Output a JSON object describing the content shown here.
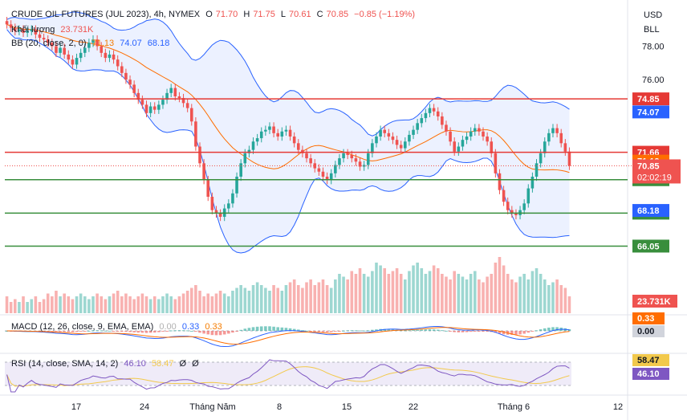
{
  "header": {
    "instrument": "CRUDE OIL FUTURES (JUL 2023), 4h, NYMEX",
    "ohlc": {
      "o_label": "O",
      "o": "71.70",
      "h_label": "H",
      "h": "71.75",
      "l_label": "L",
      "l": "70.61",
      "c_label": "C",
      "c": "70.85",
      "change": "−0.85 (−1.19%)"
    },
    "volume_label": "Khối lượng",
    "volume_value": "23.731K",
    "bb_label": "BB (20, close, 2, 0)",
    "bb_values": [
      "71.13",
      "74.07",
      "68.18"
    ]
  },
  "right_axis": {
    "currency": "USD",
    "mode": "BLL"
  },
  "macd_legend": {
    "label": "MACD (12, 26, close, 9, EMA, EMA)",
    "v1": "0.00",
    "v2": "0.33",
    "v3": "0.33"
  },
  "rsi_legend": {
    "label": "RSI (14, close, SMA, 14, 2)",
    "v1": "46.10",
    "v2": "58.47",
    "v3": "Ø",
    "v4": "Ø"
  },
  "colors": {
    "up": "#26a69a",
    "down": "#ef5350",
    "bb_band": "#2962ff",
    "bb_basis": "#ff6d00",
    "res_line": "#e53935",
    "sup_line": "#388e3c",
    "macd": "#2962ff",
    "signal": "#ff6d00",
    "rsi": "#7e57c2",
    "rsi_ma": "#f2c94c",
    "rsi_band": "rgba(126,87,194,0.12)"
  },
  "chart_data": {
    "type": "candlestick",
    "price_ticks": [
      "78.00",
      "76.00"
    ],
    "price_range": [
      64.2,
      79.8
    ],
    "x_ticks": [
      "17",
      "24",
      "Tháng Năm",
      "8",
      "15",
      "22",
      "Tháng 6",
      "12"
    ],
    "h_lines": [
      {
        "price": 74.85,
        "label": "74.85",
        "kind": "resistance"
      },
      {
        "price": 71.66,
        "label": "71.66",
        "kind": "resistance"
      },
      {
        "price": 70.02,
        "label": "70.02",
        "kind": "support"
      },
      {
        "price": 68.02,
        "label": "68.02",
        "kind": "support"
      },
      {
        "price": 66.05,
        "label": "66.05",
        "kind": "support"
      }
    ],
    "price_badges": [
      {
        "price": 74.07,
        "label": "74.07",
        "color": "#2962ff"
      },
      {
        "price": 71.13,
        "label": "71.13",
        "color": "#ff6d00"
      },
      {
        "price": 68.18,
        "label": "68.18",
        "color": "#2962ff"
      }
    ],
    "last_price": {
      "price": 70.85,
      "label": "70.85",
      "countdown": "02:02:19"
    },
    "volume_badge": "23.731K",
    "macd_badges": [
      "0.33",
      "0.00"
    ],
    "rsi_badges": [
      "58.47",
      "46.10"
    ],
    "close_series": [
      79.3,
      79.1,
      78.9,
      79.0,
      78.8,
      78.9,
      79.0,
      78.7,
      78.5,
      78.4,
      78.2,
      78.0,
      77.6,
      77.9,
      77.5,
      77.2,
      76.9,
      77.3,
      77.6,
      77.9,
      78.2,
      78.4,
      78.0,
      77.6,
      77.3,
      77.5,
      77.2,
      76.8,
      76.4,
      76.0,
      75.7,
      75.2,
      74.8,
      74.5,
      74.0,
      74.4,
      74.2,
      74.5,
      74.8,
      75.2,
      75.5,
      75.0,
      74.9,
      74.6,
      74.3,
      73.5,
      72.0,
      71.0,
      70.0,
      69.0,
      68.2,
      68.0,
      67.8,
      68.3,
      68.6,
      69.2,
      70.2,
      71.0,
      71.6,
      71.8,
      72.3,
      72.5,
      72.9,
      73.0,
      73.2,
      72.8,
      72.6,
      72.9,
      73.0,
      72.6,
      72.2,
      71.8,
      71.6,
      71.3,
      71.0,
      70.7,
      70.5,
      70.2,
      70.0,
      70.4,
      70.9,
      71.3,
      71.6,
      71.5,
      71.3,
      71.1,
      70.8,
      70.9,
      71.6,
      72.2,
      72.6,
      73.0,
      72.8,
      72.6,
      72.4,
      72.1,
      71.9,
      72.3,
      72.7,
      73.0,
      73.4,
      73.7,
      74.0,
      74.3,
      74.1,
      73.8,
      73.3,
      72.9,
      72.3,
      71.7,
      72.0,
      72.4,
      72.6,
      72.9,
      73.1,
      72.9,
      72.6,
      72.3,
      71.6,
      70.4,
      69.4,
      68.7,
      68.2,
      68.0,
      67.9,
      68.2,
      68.6,
      69.5,
      70.2,
      71.0,
      71.6,
      72.3,
      72.8,
      73.1,
      72.8,
      72.2,
      71.7,
      70.85
    ],
    "volume_series": [
      0.3,
      0.2,
      0.25,
      0.2,
      0.3,
      0.2,
      0.25,
      0.3,
      0.2,
      0.25,
      0.35,
      0.3,
      0.4,
      0.3,
      0.35,
      0.3,
      0.25,
      0.3,
      0.35,
      0.3,
      0.25,
      0.3,
      0.35,
      0.3,
      0.25,
      0.3,
      0.35,
      0.4,
      0.3,
      0.35,
      0.3,
      0.25,
      0.3,
      0.35,
      0.3,
      0.25,
      0.3,
      0.25,
      0.3,
      0.35,
      0.3,
      0.25,
      0.3,
      0.35,
      0.4,
      0.45,
      0.5,
      0.4,
      0.3,
      0.35,
      0.3,
      0.35,
      0.4,
      0.35,
      0.3,
      0.4,
      0.45,
      0.5,
      0.45,
      0.4,
      0.5,
      0.55,
      0.5,
      0.45,
      0.4,
      0.5,
      0.45,
      0.4,
      0.5,
      0.55,
      0.6,
      0.5,
      0.45,
      0.55,
      0.6,
      0.5,
      0.55,
      0.6,
      0.5,
      0.45,
      0.6,
      0.7,
      0.65,
      0.6,
      0.75,
      0.7,
      0.8,
      0.7,
      0.65,
      0.75,
      0.9,
      0.85,
      0.8,
      0.7,
      0.75,
      0.8,
      0.7,
      0.6,
      0.75,
      0.85,
      0.9,
      0.8,
      0.7,
      0.75,
      0.85,
      0.8,
      0.7,
      0.65,
      0.6,
      0.75,
      0.7,
      0.65,
      0.6,
      0.7,
      0.75,
      0.6,
      0.55,
      0.65,
      0.7,
      0.9,
      1.0,
      0.85,
      0.7,
      0.6,
      0.55,
      0.65,
      0.7,
      0.6,
      0.75,
      0.8,
      0.7,
      0.6,
      0.5,
      0.55,
      0.6,
      0.5,
      0.45,
      0.3
    ]
  }
}
